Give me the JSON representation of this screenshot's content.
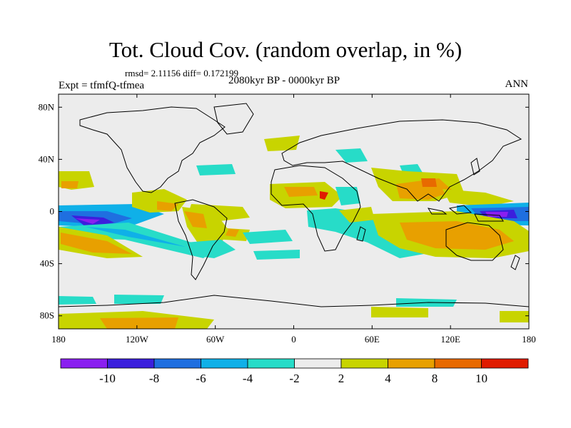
{
  "title": "Tot. Cloud Cov. (random overlap, in %)",
  "stats": "rmsd= 2.11156 diff= 0.172199",
  "expt": "Expt = tfmfQ-tfmea",
  "period": "2080kyr BP - 0000kyr BP",
  "season": "ANN",
  "lon_ticks": [
    "180",
    "120W",
    "60W",
    "0",
    "60E",
    "120E",
    "180"
  ],
  "lat_ticks": [
    "80N",
    "40N",
    "0",
    "40S",
    "80S"
  ],
  "colorbar": {
    "colors": [
      "#8a1ff0",
      "#3b1fdd",
      "#1f6fe0",
      "#0fb0e8",
      "#27dcc8",
      "#ececec",
      "#c8d400",
      "#e8a000",
      "#e86a00",
      "#e01b00"
    ],
    "labels": [
      "-10",
      "-8",
      "-6",
      "-4",
      "-2",
      "2",
      "4",
      "8",
      "10"
    ]
  }
}
